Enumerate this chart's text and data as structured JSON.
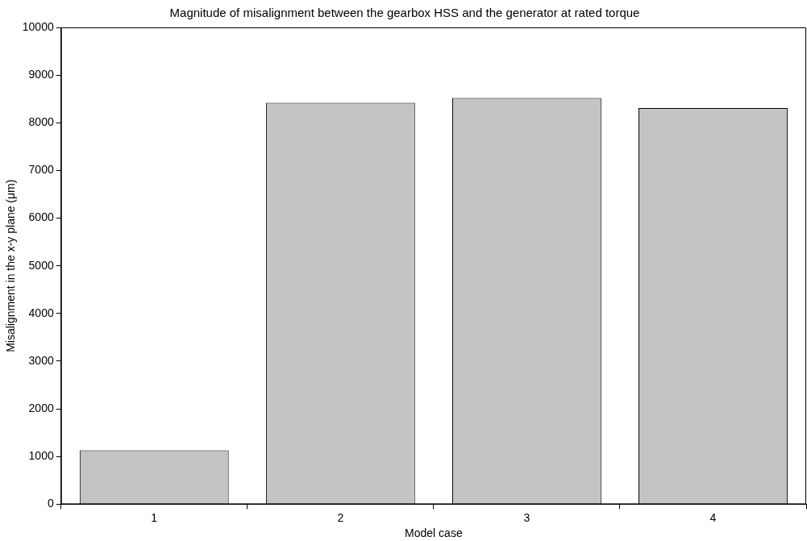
{
  "chart_data": {
    "type": "bar",
    "title": "Magnitude of misalignment between the gearbox HSS and the generator at rated torque",
    "xlabel": "Model case",
    "ylabel": "Misalignment in the x-y plane (μm)",
    "categories": [
      "1",
      "2",
      "3",
      "4"
    ],
    "values": [
      1130,
      8420,
      8520,
      8310
    ],
    "color": "#c4c4c4",
    "ylim": [
      0,
      10000
    ],
    "yticks": [
      0,
      1000,
      2000,
      3000,
      4000,
      5000,
      6000,
      7000,
      8000,
      9000,
      10000
    ],
    "grid": false,
    "legend": false
  }
}
